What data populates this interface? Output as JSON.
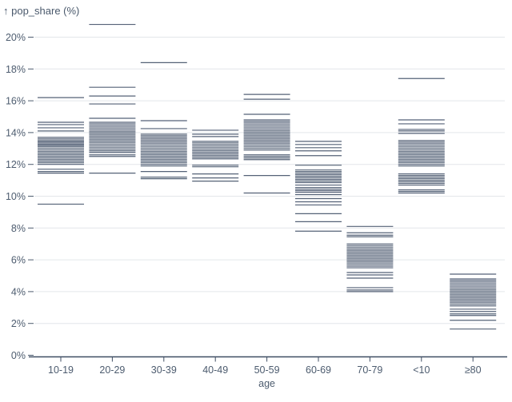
{
  "chart": {
    "y_axis_label": "↑ pop_share (%)",
    "x_axis_label": "age"
  },
  "colors": {
    "tick_color": "#47556b",
    "grid_color": "#e3e6ea",
    "axis_color": "#3f4e63",
    "text_color": "#4d5c6f",
    "background": "#ffffff"
  },
  "chart_data": {
    "type": "tick",
    "title": "",
    "ylabel": "pop_share (%)",
    "xlabel": "age",
    "ylim": [
      0,
      21
    ],
    "y_ticks": [
      0,
      2,
      4,
      6,
      8,
      10,
      12,
      14,
      16,
      18,
      20
    ],
    "y_tick_suffix": "%",
    "grid": true,
    "legend_position": "none",
    "note": "each value renders as one horizontal tick mark in its age category",
    "categories": [
      "10-19",
      "20-29",
      "30-39",
      "40-49",
      "50-59",
      "60-69",
      "70-79",
      "<10",
      "≥80"
    ],
    "values": [
      [
        16.2,
        14.65,
        14.5,
        14.3,
        14.1,
        13.7,
        13.6,
        13.5,
        13.42,
        13.34,
        13.26,
        13.18,
        13.1,
        13.0,
        12.9,
        12.8,
        12.7,
        12.6,
        12.5,
        12.4,
        12.3,
        12.2,
        12.1,
        12.0,
        11.7,
        11.55,
        11.45,
        9.5
      ],
      [
        20.8,
        16.85,
        16.3,
        15.8,
        14.9,
        14.65,
        14.55,
        14.45,
        14.35,
        14.25,
        14.15,
        14.05,
        13.95,
        13.85,
        13.75,
        13.65,
        13.55,
        13.45,
        13.35,
        13.25,
        13.15,
        13.05,
        12.95,
        12.85,
        12.75,
        12.6,
        12.5,
        11.45
      ],
      [
        18.4,
        14.75,
        14.25,
        13.9,
        13.8,
        13.7,
        13.6,
        13.5,
        13.4,
        13.3,
        13.2,
        13.1,
        13.0,
        12.9,
        12.8,
        12.7,
        12.6,
        12.5,
        12.4,
        12.3,
        12.2,
        12.1,
        12.0,
        11.9,
        11.55,
        11.2,
        11.1
      ],
      [
        14.15,
        13.9,
        13.75,
        13.45,
        13.35,
        13.25,
        13.15,
        13.05,
        12.95,
        12.85,
        12.75,
        12.65,
        12.55,
        12.45,
        12.35,
        11.95,
        11.85,
        11.4,
        11.15,
        10.95
      ],
      [
        16.4,
        16.1,
        15.15,
        14.8,
        14.7,
        14.6,
        14.5,
        14.4,
        14.3,
        14.2,
        14.1,
        14.0,
        13.9,
        13.8,
        13.7,
        13.6,
        13.5,
        13.4,
        13.3,
        13.2,
        13.1,
        13.0,
        12.9,
        12.6,
        12.5,
        12.4,
        12.3,
        11.3,
        10.2
      ],
      [
        13.45,
        13.25,
        13.05,
        12.85,
        12.55,
        11.95,
        11.65,
        11.55,
        11.45,
        11.35,
        11.25,
        11.15,
        11.05,
        10.95,
        10.85,
        10.7,
        10.55,
        10.45,
        10.35,
        10.25,
        10.1,
        9.85,
        9.65,
        9.45,
        8.9,
        8.4,
        7.8
      ],
      [
        8.1,
        7.7,
        7.55,
        7.45,
        7.0,
        6.9,
        6.8,
        6.7,
        6.6,
        6.5,
        6.4,
        6.3,
        6.2,
        6.1,
        6.0,
        5.9,
        5.8,
        5.7,
        5.6,
        5.5,
        5.2,
        5.05,
        4.85,
        4.25,
        4.1,
        4.0
      ],
      [
        17.4,
        14.8,
        14.55,
        14.2,
        14.1,
        13.95,
        13.5,
        13.4,
        13.3,
        13.2,
        13.1,
        13.0,
        12.9,
        12.8,
        12.7,
        12.6,
        12.5,
        12.4,
        12.3,
        12.2,
        12.1,
        12.0,
        11.9,
        11.4,
        11.3,
        11.2,
        11.1,
        11.0,
        10.9,
        10.8,
        10.7,
        10.4,
        10.3,
        10.2
      ],
      [
        5.1,
        4.8,
        4.7,
        4.6,
        4.5,
        4.4,
        4.3,
        4.2,
        4.1,
        4.0,
        3.9,
        3.8,
        3.7,
        3.6,
        3.5,
        3.4,
        3.3,
        3.2,
        3.1,
        2.9,
        2.75,
        2.6,
        2.5,
        2.2,
        1.65
      ]
    ]
  }
}
